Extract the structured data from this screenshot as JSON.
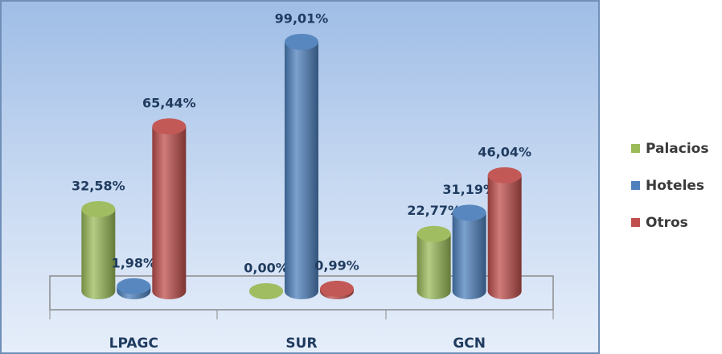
{
  "chart_data": {
    "type": "bar",
    "categories": [
      "LPAGC",
      "SUR",
      "GCN"
    ],
    "series": [
      {
        "name": "Palacios",
        "color": "#9bbb59",
        "values": [
          32.58,
          0,
          22.77
        ],
        "value_labels": [
          "32,58%",
          "0,00%",
          "22,77%"
        ]
      },
      {
        "name": "Hoteles",
        "color": "#4f81bd",
        "values": [
          1.98,
          99.01,
          31.19
        ],
        "value_labels": [
          "1,98%",
          "99,01%",
          "31,19%"
        ]
      },
      {
        "name": "Otros",
        "color": "#c0504d",
        "values": [
          65.44,
          0.99,
          46.04
        ],
        "value_labels": [
          "65,44%",
          "0,99%",
          "46,04%"
        ]
      }
    ],
    "legend": "right"
  }
}
